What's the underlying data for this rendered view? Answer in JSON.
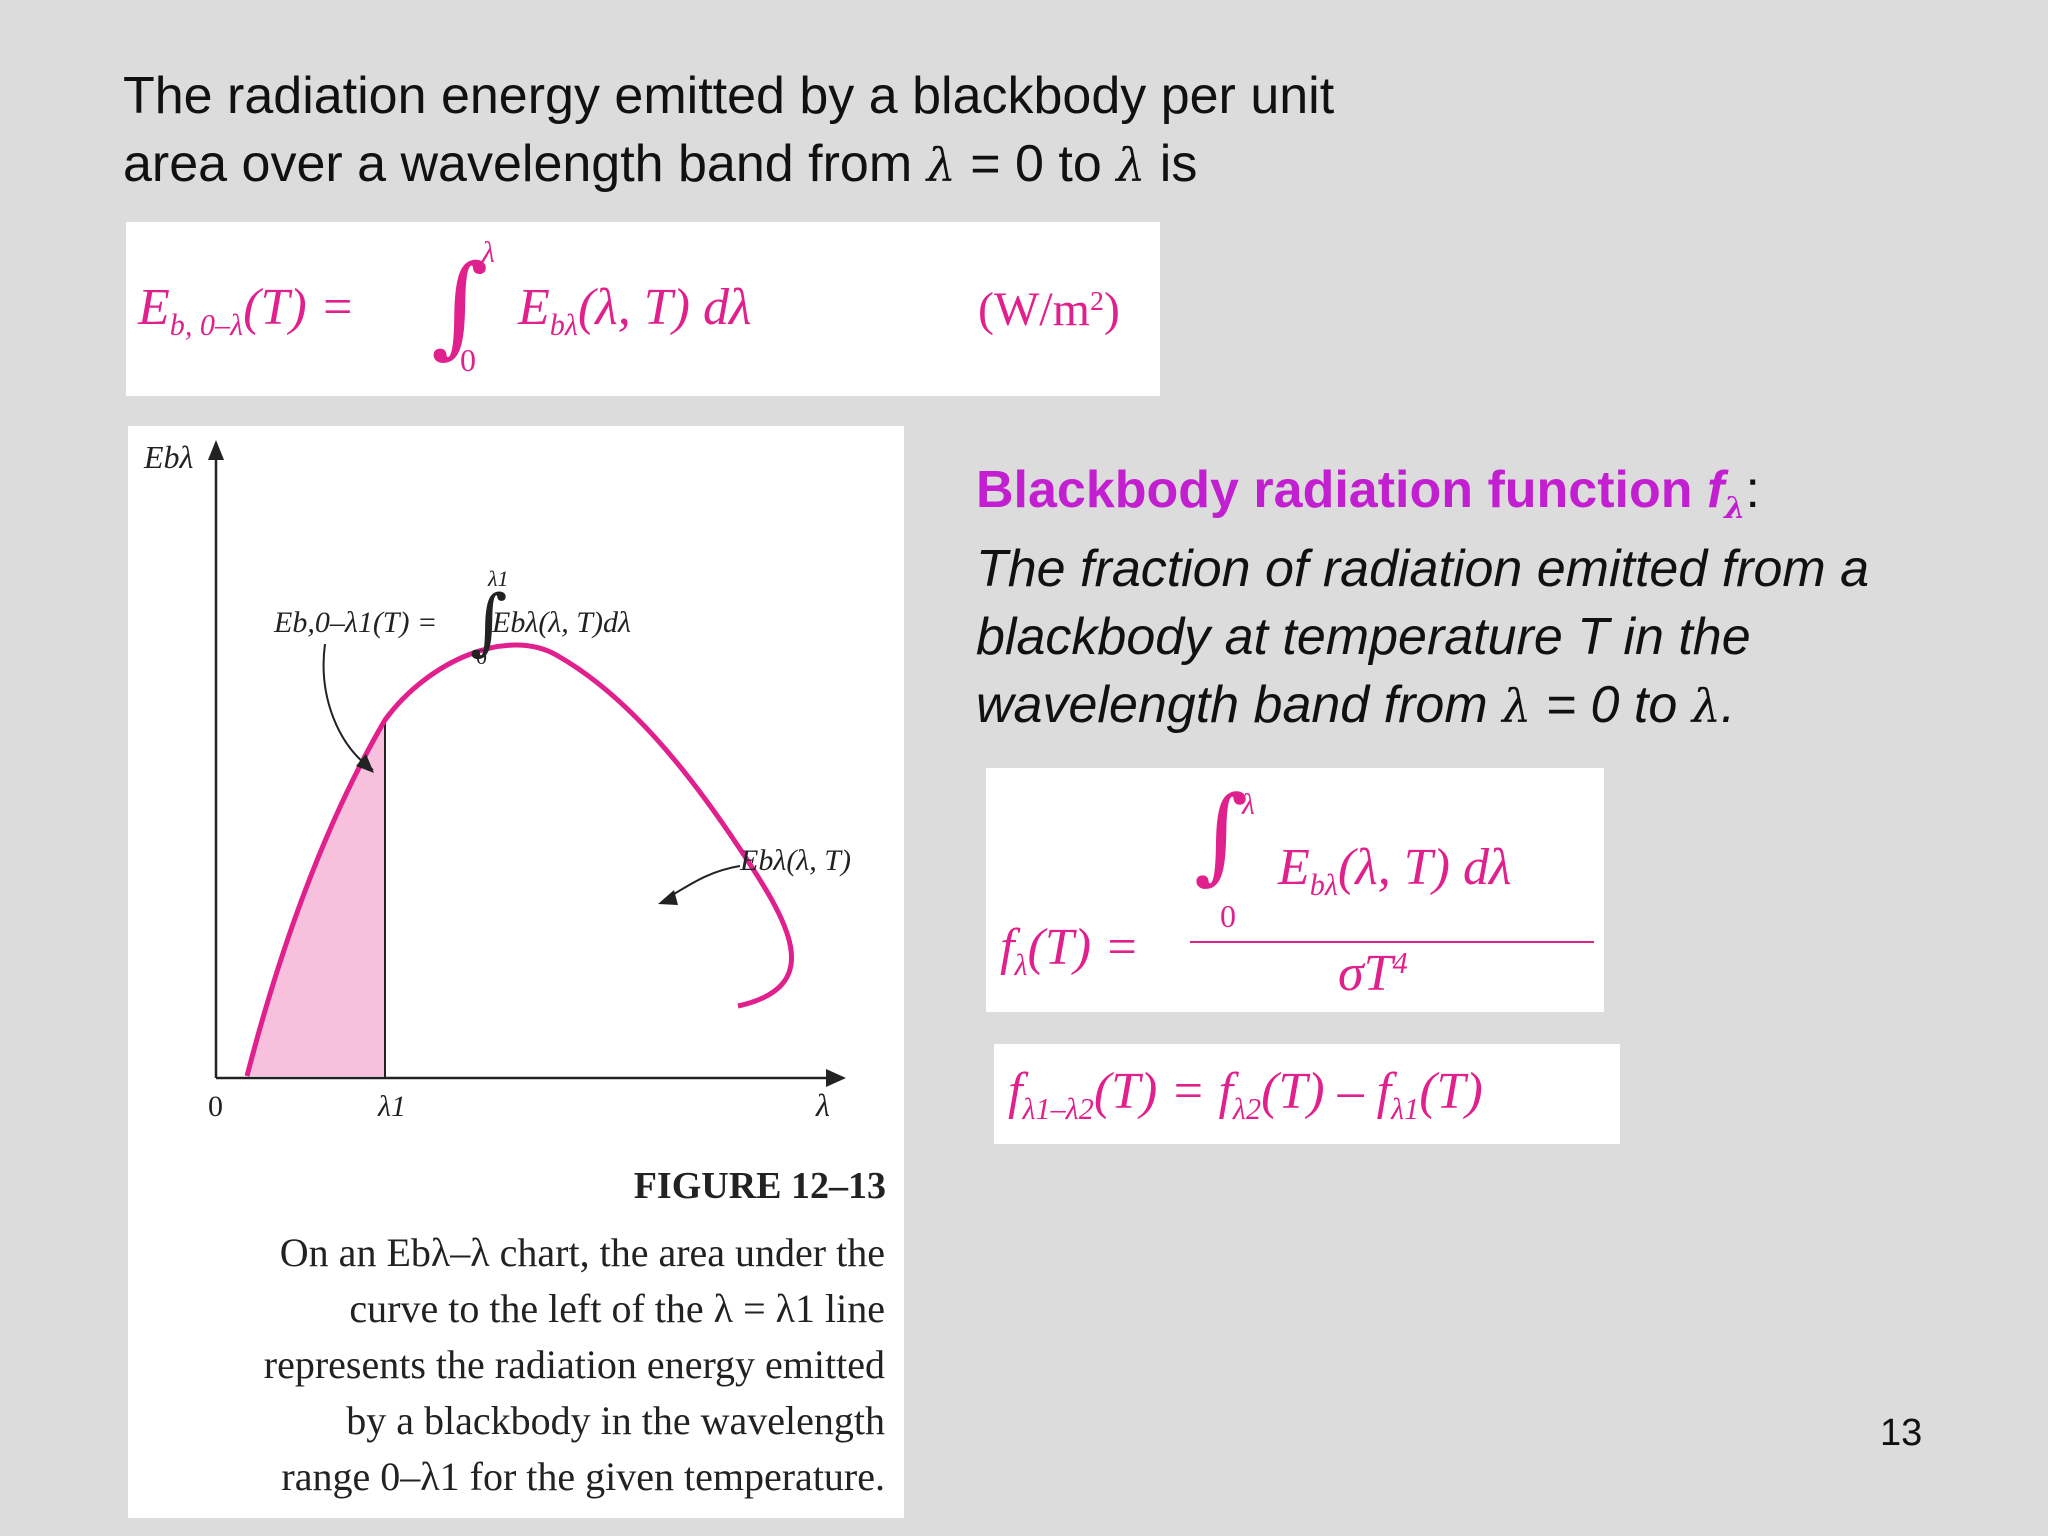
{
  "intro": {
    "line1": "The radiation energy emitted by a blackbody per unit",
    "line2_prefix": "area over a wavelength band from ",
    "lambda": "λ",
    "eq_zero_to": " = 0 to ",
    "line2_suffix": " is"
  },
  "eq1": {
    "lhs_E": "E",
    "lhs_sub": "b, 0–λ",
    "lhs_arg": "(T) =",
    "integral": "∫",
    "upper": "λ",
    "lower": "0",
    "integrand_E": "E",
    "integrand_sub": "bλ",
    "integrand_arg": "(λ, T) dλ",
    "units_open": "(W/m",
    "units_sup": "2",
    "units_close": ")"
  },
  "figure": {
    "y_axis_label": "Ebλ",
    "x_origin": "0",
    "x_tick_lambda1": "λ1",
    "x_axis_label": "λ",
    "area_eq_lhs": "Eb,0–λ1(T) =",
    "area_eq_upper": "λ1",
    "area_eq_lower": "0",
    "area_eq_integrand": "Ebλ(λ, T)dλ",
    "curve_label": "Ebλ(λ, T)",
    "title": "FIGURE 12–13",
    "caption": [
      "On an Ebλ–λ chart, the area under the",
      "curve to the left of the λ = λ1 line",
      "represents the radiation energy emitted",
      "by a blackbody in the wavelength",
      "range 0–λ1 for the given temperature."
    ],
    "curve_color": "#e0208c",
    "fill_color": "#f7c0dc"
  },
  "bb": {
    "heading": "Blackbody radiation function ",
    "heading_f": "f",
    "heading_sub": "λ",
    "heading_colon": ":",
    "desc_line1": "The fraction of radiation emitted from a",
    "desc_line2": "blackbody at temperature T in the",
    "desc_line3_prefix": "wavelength band from ",
    "desc_lambda": "λ",
    "desc_eq": " = 0 to ",
    "desc_end": ".",
    "heading_color": "#c21fd1"
  },
  "eq2": {
    "lhs": "f",
    "lhs_sub": "λ",
    "lhs_arg": "(T) =",
    "integral": "∫",
    "upper": "λ",
    "lower": "0",
    "num_E": "E",
    "num_sub": "bλ",
    "num_arg": "(λ, T) dλ",
    "den": "σT",
    "den_sup": "4"
  },
  "eq3": {
    "f1": "f",
    "f1_sub": "λ1–λ2",
    "f1_arg": "(T) = ",
    "f2": "f",
    "f2_sub": "λ2",
    "f2_arg": "(T) – ",
    "f3": "f",
    "f3_sub": "λ1",
    "f3_arg": "(T)"
  },
  "page_number": "13"
}
